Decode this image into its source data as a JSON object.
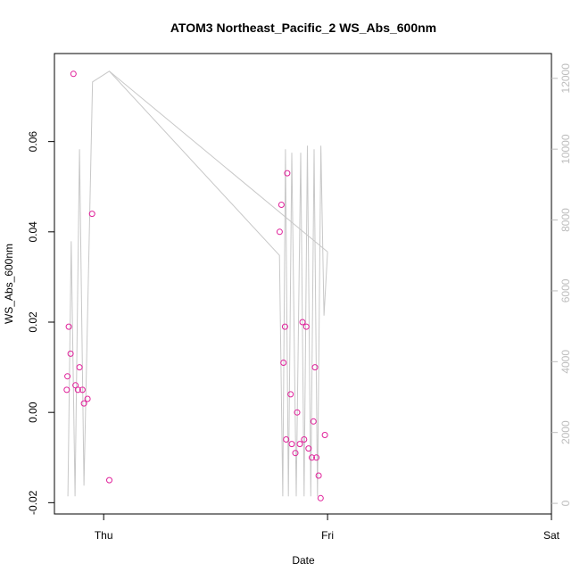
{
  "chart_data": {
    "type": "scatter",
    "title": "ATOM3 Northeast_Pacific_2 WS_Abs_600nm",
    "xlabel": "Date",
    "ylabel": "WS_Abs_600nm",
    "x_range": [
      -0.22,
      2.0
    ],
    "x_ticks": [
      {
        "value": 0,
        "label": "Thu"
      },
      {
        "value": 1,
        "label": "Fri"
      },
      {
        "value": 2,
        "label": "Sat"
      }
    ],
    "ylim": [
      -0.0225,
      0.0795
    ],
    "y_ticks": [
      -0.02,
      0.0,
      0.02,
      0.04,
      0.06
    ],
    "y_tick_labels": [
      "-0.02",
      "0.00",
      "0.02",
      "0.04",
      "0.06"
    ],
    "y2lim": [
      -300,
      12700
    ],
    "y2_ticks": [
      0,
      2000,
      4000,
      6000,
      8000,
      10000,
      12000
    ],
    "y2_tick_labels": [
      "0",
      "2000",
      "4000",
      "6000",
      "8000",
      "10000",
      "12000"
    ],
    "grid": false,
    "points_color": "#e0209a",
    "line_color": "#c8c8c8",
    "series": [
      {
        "kind": "points",
        "axis": "left",
        "x": [
          -0.165,
          -0.162,
          -0.156,
          -0.148,
          -0.135,
          -0.126,
          -0.115,
          -0.108,
          -0.095,
          -0.088,
          -0.072,
          -0.052,
          0.025,
          0.786,
          0.794,
          0.803,
          0.81,
          0.815,
          0.82,
          0.835,
          0.84,
          0.856,
          0.864,
          0.876,
          0.888,
          0.895,
          0.905,
          0.915,
          0.93,
          0.937,
          0.944,
          0.95,
          0.96,
          0.969,
          0.988
        ],
        "y": [
          0.005,
          0.008,
          0.019,
          0.013,
          0.075,
          0.006,
          0.005,
          0.01,
          0.005,
          0.002,
          0.003,
          0.044,
          -0.015,
          0.04,
          0.046,
          0.011,
          0.019,
          -0.006,
          0.053,
          0.004,
          -0.007,
          -0.009,
          0.0,
          -0.007,
          0.02,
          -0.006,
          0.019,
          -0.008,
          -0.01,
          -0.002,
          0.01,
          -0.01,
          -0.014,
          -0.019,
          -0.005
        ]
      },
      {
        "kind": "line",
        "axis": "right",
        "x": [
          -0.16,
          -0.145,
          -0.128,
          -0.108,
          -0.088,
          -0.05,
          0.025,
          0.785,
          0.8,
          0.812,
          0.825,
          0.84,
          0.86,
          0.88,
          0.895,
          0.91,
          0.925,
          0.94,
          0.955,
          0.97,
          0.984,
          1.0
        ],
        "y": [
          200,
          7400,
          200,
          10000,
          500,
          11900,
          12200,
          7000,
          200,
          10000,
          200,
          9900,
          200,
          9900,
          200,
          10100,
          200,
          10000,
          200,
          10100,
          5300,
          7100
        ]
      },
      {
        "kind": "line",
        "axis": "right",
        "x": [
          0.025,
          1.0
        ],
        "y": [
          12200,
          7100
        ]
      }
    ]
  }
}
